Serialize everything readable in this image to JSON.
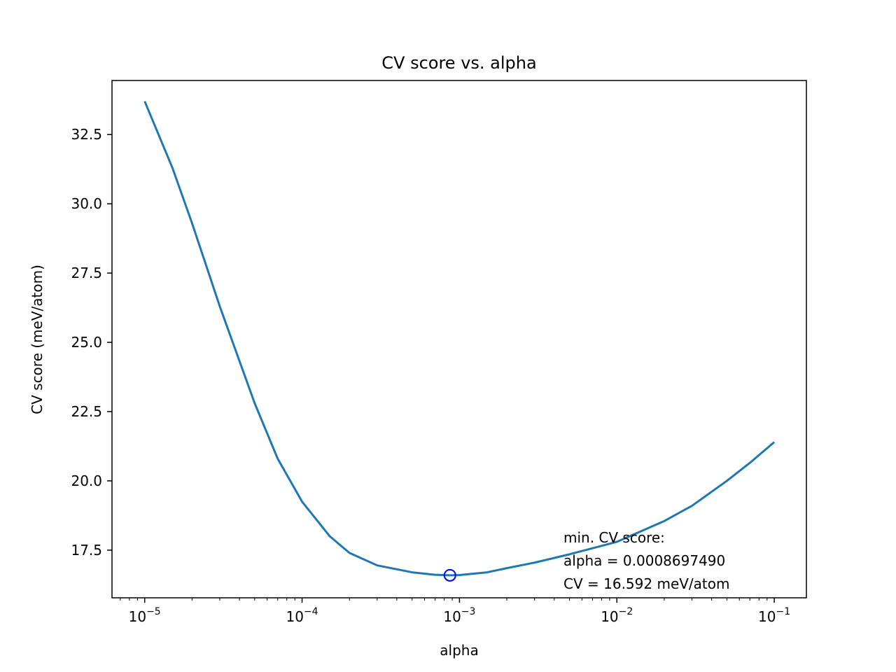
{
  "chart_data": {
    "type": "line",
    "title": "CV score vs. alpha",
    "xlabel": "alpha",
    "ylabel": "CV score (meV/atom)",
    "xscale": "log",
    "xlim": [
      6.2e-06,
      0.16
    ],
    "ylim": [
      15.78,
      34.45
    ],
    "grid": false,
    "x_ticks": [
      {
        "value": 1e-05,
        "base": "10",
        "exp": "−5"
      },
      {
        "value": 0.0001,
        "base": "10",
        "exp": "−4"
      },
      {
        "value": 0.001,
        "base": "10",
        "exp": "−3"
      },
      {
        "value": 0.01,
        "base": "10",
        "exp": "−2"
      },
      {
        "value": 0.1,
        "base": "10",
        "exp": "−1"
      }
    ],
    "y_ticks": [
      {
        "value": 17.5,
        "label": "17.5"
      },
      {
        "value": 20.0,
        "label": "20.0"
      },
      {
        "value": 22.5,
        "label": "22.5"
      },
      {
        "value": 25.0,
        "label": "25.0"
      },
      {
        "value": 27.5,
        "label": "27.5"
      },
      {
        "value": 30.0,
        "label": "30.0"
      },
      {
        "value": 32.5,
        "label": "32.5"
      }
    ],
    "series": [
      {
        "color": "#1f77b4",
        "x": [
          1e-05,
          1.5e-05,
          2e-05,
          3e-05,
          5e-05,
          7e-05,
          0.0001,
          0.00015,
          0.0002,
          0.0003,
          0.0005,
          0.0007,
          0.00086975,
          0.001,
          0.0015,
          0.002,
          0.003,
          0.005,
          0.01,
          0.02,
          0.03,
          0.05,
          0.07,
          0.1
        ],
        "y": [
          33.7,
          31.3,
          29.3,
          26.3,
          22.8,
          20.8,
          19.25,
          18.0,
          17.4,
          16.95,
          16.7,
          16.61,
          16.592,
          16.6,
          16.7,
          16.85,
          17.05,
          17.35,
          17.8,
          18.55,
          19.1,
          20.0,
          20.65,
          21.4
        ]
      }
    ],
    "minimum_point": {
      "x": 0.000869749,
      "y": 16.592,
      "marker": "circle",
      "color": "#0000ff"
    },
    "annotation": {
      "lines": [
        "min. CV score:",
        "alpha = 0.0008697490",
        "CV = 16.592 meV/atom"
      ]
    }
  }
}
